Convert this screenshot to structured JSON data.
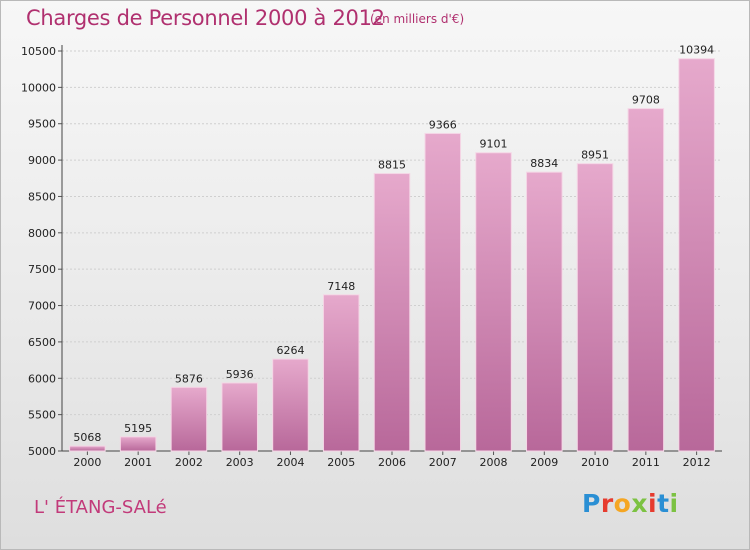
{
  "title": "Charges de Personnel 2000 à 2012",
  "subtitle": "(en milliers d'€)",
  "place": "L' ÉTANG-SALé",
  "brand": {
    "letters": [
      "P",
      "r",
      "o",
      "x",
      "i",
      "t",
      "i"
    ],
    "colors": [
      "#2a8fd4",
      "#e63b2e",
      "#f5a623",
      "#7cc242",
      "#e63b2e",
      "#2a8fd4",
      "#7cc242"
    ]
  },
  "colors": {
    "title": "#b0306f",
    "bar_top": "#e6a9cc",
    "bar_bottom": "#b8689a",
    "bar_edge": "#f5d6e6"
  },
  "chart_data": {
    "type": "bar",
    "categories": [
      "2000",
      "2001",
      "2002",
      "2003",
      "2004",
      "2005",
      "2006",
      "2007",
      "2008",
      "2009",
      "2010",
      "2011",
      "2012"
    ],
    "values": [
      5068,
      5195,
      5876,
      5936,
      6264,
      7148,
      8815,
      9366,
      9101,
      8834,
      8951,
      9708,
      10394
    ],
    "data_labels": [
      "5068",
      "5195",
      "5876",
      "5936",
      "6264",
      "7148",
      "8815",
      "9366",
      "9101",
      "8834",
      "8951",
      "9708",
      "10394"
    ],
    "yticks": [
      5000,
      5500,
      6000,
      6500,
      7000,
      7500,
      8000,
      8500,
      9000,
      9500,
      10000,
      10500
    ],
    "ylim": [
      5000,
      10500
    ],
    "xlabel": "",
    "ylabel": "",
    "grid": "horizontal"
  }
}
